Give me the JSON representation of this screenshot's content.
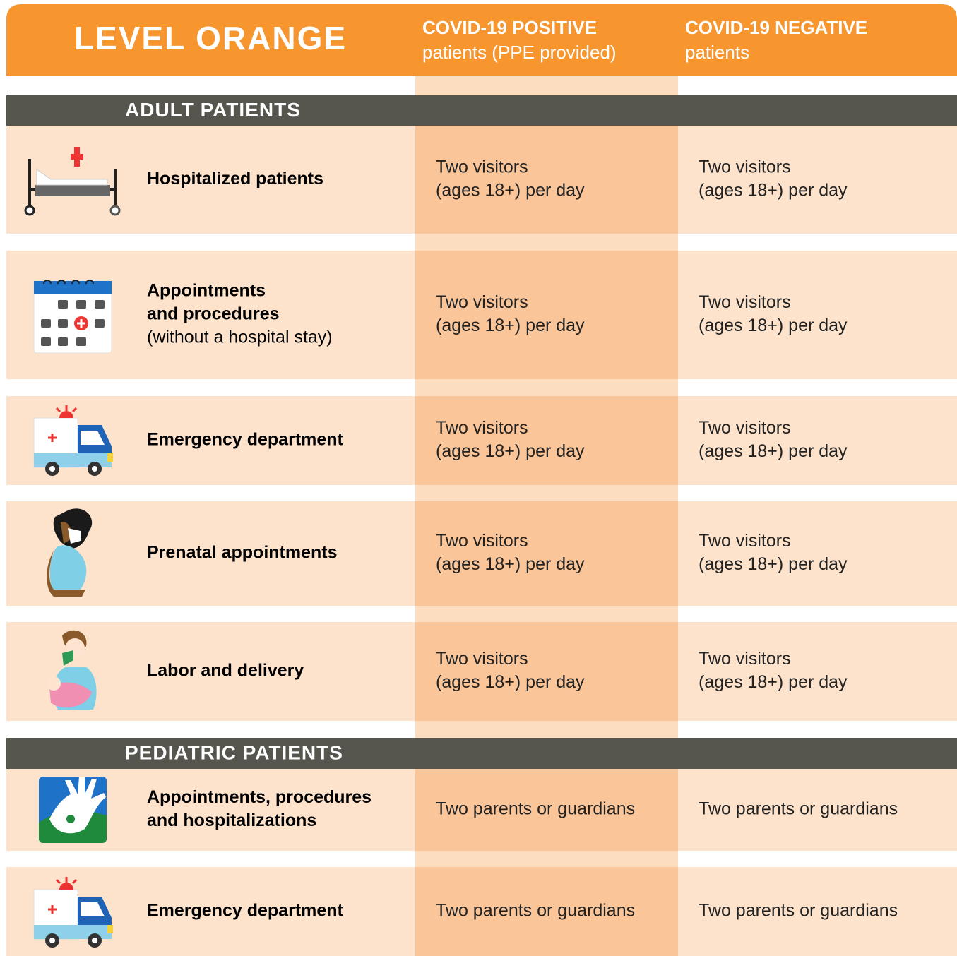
{
  "header": {
    "title": "LEVEL ORANGE",
    "columns": [
      {
        "title": "COVID-19 POSITIVE",
        "subtitle": "patients (PPE provided)"
      },
      {
        "title": "COVID-19 NEGATIVE",
        "subtitle": "patients"
      }
    ]
  },
  "sections": [
    {
      "title": "ADULT PATIENTS",
      "rows": [
        {
          "label": [
            "Hospitalized patients"
          ],
          "positive": [
            "Two visitors",
            "(ages 18+) per day"
          ],
          "negative": [
            "Two visitors",
            "(ages 18+) per day"
          ]
        },
        {
          "label": [
            "Appointments",
            "and procedures"
          ],
          "note": "(without a hospital stay)",
          "positive": [
            "Two visitors",
            "(ages 18+) per day"
          ],
          "negative": [
            "Two visitors",
            "(ages 18+) per day"
          ]
        },
        {
          "label": [
            "Emergency department"
          ],
          "positive": [
            "Two visitors",
            "(ages 18+) per day"
          ],
          "negative": [
            "Two visitors",
            "(ages 18+) per day"
          ]
        },
        {
          "label": [
            "Prenatal appointments"
          ],
          "positive": [
            "Two visitors",
            "(ages 18+) per day"
          ],
          "negative": [
            "Two visitors",
            "(ages 18+) per day"
          ]
        },
        {
          "label": [
            "Labor and delivery"
          ],
          "positive": [
            "Two visitors",
            "(ages 18+) per day"
          ],
          "negative": [
            "Two visitors",
            "(ages 18+) per day"
          ]
        }
      ]
    },
    {
      "title": "PEDIATRIC PATIENTS",
      "rows": [
        {
          "label": [
            "Appointments, procedures",
            "and hospitalizations"
          ],
          "positive": [
            "Two parents or guardians"
          ],
          "negative": [
            "Two parents or guardians"
          ]
        },
        {
          "label": [
            "Emergency department"
          ],
          "positive": [
            "Two parents or guardians"
          ],
          "negative": [
            "Two parents or guardians"
          ]
        }
      ]
    }
  ]
}
